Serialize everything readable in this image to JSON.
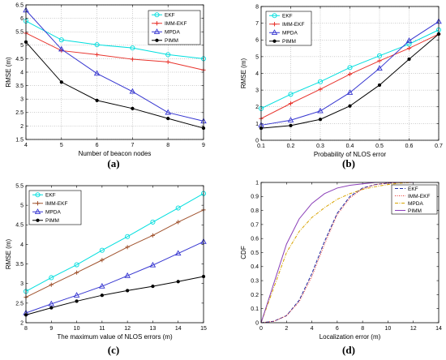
{
  "chart_data": [
    {
      "type": "line",
      "panel": "(a)",
      "xlabel": "Number of beacon nodes",
      "ylabel": "RMSE (m)",
      "x": [
        4,
        5,
        6,
        7,
        8,
        9
      ],
      "xlim": [
        4,
        9
      ],
      "ylim": [
        1.5,
        6.5
      ],
      "xticks": [
        "4",
        "5",
        "6",
        "7",
        "8",
        "9"
      ],
      "yticks": [
        "1.5",
        "2",
        "2.5",
        "3",
        "3.5",
        "4",
        "4.5",
        "5",
        "5.5",
        "6",
        "6.5"
      ],
      "grid": true,
      "legend_position": "top-right",
      "series": [
        {
          "name": "EKF",
          "color": "#00dede",
          "marker": "circle",
          "values": [
            5.9,
            5.2,
            5.02,
            4.9,
            4.65,
            4.5
          ]
        },
        {
          "name": "IMM-EKF",
          "color": "#e8332c",
          "marker": "plus",
          "values": [
            5.45,
            4.8,
            4.65,
            4.48,
            4.38,
            4.08
          ]
        },
        {
          "name": "MPDA",
          "color": "#3535d0",
          "marker": "triangle",
          "values": [
            6.3,
            4.85,
            3.95,
            3.28,
            2.5,
            2.18
          ]
        },
        {
          "name": "PIMM",
          "color": "#000000",
          "marker": "dot",
          "values": [
            5.12,
            3.63,
            2.95,
            2.65,
            2.28,
            1.92
          ]
        }
      ]
    },
    {
      "type": "line",
      "panel": "(b)",
      "xlabel": "Probability of NLOS error",
      "ylabel": "RMSE (m)",
      "x": [
        0.1,
        0.2,
        0.3,
        0.4,
        0.5,
        0.6,
        0.7
      ],
      "xlim": [
        0.1,
        0.7
      ],
      "ylim": [
        0,
        8
      ],
      "xticks": [
        "0.1",
        "0.2",
        "0.3",
        "0.4",
        "0.5",
        "0.6",
        "0.7"
      ],
      "yticks": [
        "0",
        "1",
        "2",
        "3",
        "4",
        "5",
        "6",
        "7",
        "8"
      ],
      "grid": true,
      "legend_position": "top-left",
      "series": [
        {
          "name": "EKF",
          "color": "#00dede",
          "marker": "circle",
          "values": [
            1.9,
            2.75,
            3.5,
            4.35,
            5.05,
            5.75,
            6.6
          ]
        },
        {
          "name": "IMM-EKF",
          "color": "#e8332c",
          "marker": "plus",
          "values": [
            1.3,
            2.2,
            3.05,
            3.95,
            4.75,
            5.5,
            6.35
          ]
        },
        {
          "name": "MPDA",
          "color": "#3535d0",
          "marker": "triangle",
          "values": [
            0.9,
            1.2,
            1.75,
            2.85,
            4.3,
            5.95,
            7.1
          ]
        },
        {
          "name": "PIMM",
          "color": "#000000",
          "marker": "dot",
          "values": [
            0.72,
            0.88,
            1.25,
            2.05,
            3.3,
            4.85,
            6.35
          ]
        }
      ]
    },
    {
      "type": "line",
      "panel": "(c)",
      "xlabel": "The maximum value of NLOS errors (m)",
      "ylabel": "RMSE (m)",
      "x": [
        8,
        9,
        10,
        11,
        12,
        13,
        14,
        15
      ],
      "xlim": [
        8,
        15
      ],
      "ylim": [
        2,
        5.5
      ],
      "xticks": [
        "8",
        "9",
        "10",
        "11",
        "12",
        "13",
        "14",
        "15"
      ],
      "yticks": [
        "2",
        "2.5",
        "3",
        "3.5",
        "4",
        "4.5",
        "5",
        "5.5"
      ],
      "grid": false,
      "legend_position": "top-left",
      "series": [
        {
          "name": "EKF",
          "color": "#00dede",
          "marker": "circle",
          "values": [
            2.8,
            3.15,
            3.48,
            3.85,
            4.2,
            4.57,
            4.93,
            5.3
          ]
        },
        {
          "name": "IMM-EKF",
          "color": "#a0522d",
          "marker": "plus",
          "values": [
            2.65,
            2.97,
            3.28,
            3.6,
            3.93,
            4.23,
            4.57,
            4.88
          ]
        },
        {
          "name": "MPDA",
          "color": "#3535d0",
          "marker": "triangle",
          "values": [
            2.25,
            2.48,
            2.7,
            2.93,
            3.2,
            3.47,
            3.77,
            4.07
          ]
        },
        {
          "name": "PIMM",
          "color": "#000000",
          "marker": "dot",
          "values": [
            2.2,
            2.38,
            2.55,
            2.7,
            2.82,
            2.93,
            3.05,
            3.18
          ]
        }
      ]
    },
    {
      "type": "line",
      "panel": "(d)",
      "xlabel": "Localization error (m)",
      "ylabel": "CDF",
      "xlim": [
        0,
        14
      ],
      "ylim": [
        0,
        1
      ],
      "xticks": [
        "0",
        "2",
        "4",
        "6",
        "8",
        "10",
        "12",
        "14"
      ],
      "yticks": [
        "0",
        "0.1",
        "0.2",
        "0.3",
        "0.4",
        "0.5",
        "0.6",
        "0.7",
        "0.8",
        "0.9",
        "1"
      ],
      "grid": false,
      "legend_position": "top-right",
      "series": [
        {
          "name": "EKF",
          "color": "#1f2fa8",
          "dash": "4,2",
          "x": [
            0,
            1,
            2,
            3,
            4,
            5,
            6,
            7,
            8,
            9,
            10,
            11,
            12
          ],
          "values": [
            0,
            0.01,
            0.05,
            0.16,
            0.35,
            0.58,
            0.78,
            0.9,
            0.96,
            0.985,
            0.995,
            1,
            1
          ]
        },
        {
          "name": "IMM-EKF",
          "color": "#e8332c",
          "dash": "1,1.5",
          "x": [
            0,
            1,
            2,
            3,
            4,
            5,
            6,
            7,
            8,
            9,
            10,
            11,
            12
          ],
          "values": [
            0,
            0.01,
            0.05,
            0.15,
            0.33,
            0.56,
            0.77,
            0.89,
            0.955,
            0.985,
            0.995,
            1,
            1
          ]
        },
        {
          "name": "MPDA",
          "color": "#d9a400",
          "dash": "4,1.5,1,1.5",
          "x": [
            0,
            1,
            2,
            3,
            4,
            5,
            6,
            7,
            8,
            9,
            10,
            11,
            12
          ],
          "values": [
            0,
            0.25,
            0.5,
            0.65,
            0.75,
            0.82,
            0.88,
            0.92,
            0.95,
            0.97,
            0.985,
            0.995,
            1
          ]
        },
        {
          "name": "PIMM",
          "color": "#8a3fb8",
          "dash": "",
          "x": [
            0,
            1,
            2,
            3,
            4,
            5,
            6,
            7,
            8,
            9,
            10,
            11,
            12
          ],
          "values": [
            0,
            0.28,
            0.56,
            0.74,
            0.85,
            0.92,
            0.96,
            0.98,
            0.99,
            1,
            1,
            1,
            1
          ]
        }
      ]
    }
  ]
}
